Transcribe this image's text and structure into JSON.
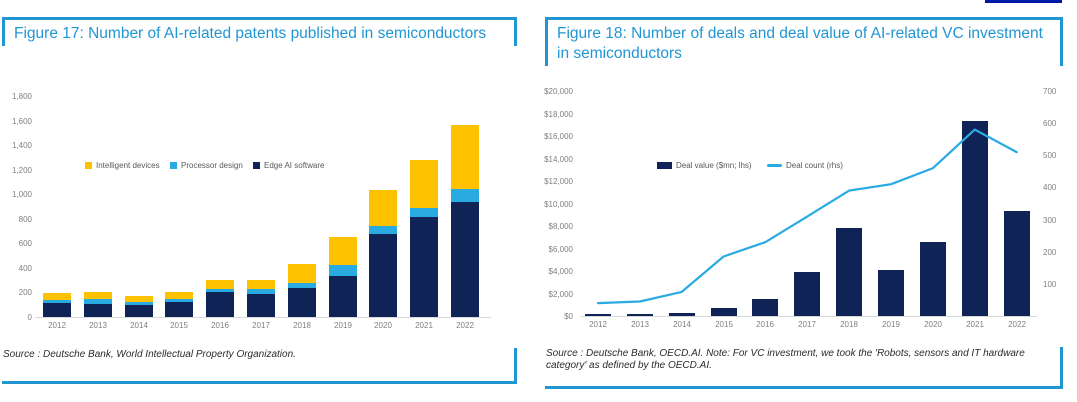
{
  "page": {
    "top_rule_color": "#0019a5",
    "accent_blue": "#2196d3",
    "axis_line_color": "#d9d9d9"
  },
  "chart_data": [
    {
      "id": "figure-17",
      "type": "bar",
      "stacked": true,
      "title": "Figure 17: Number of AI-related patents published in semiconductors",
      "source": "Source : Deutsche Bank, World Intellectual Property Organization.",
      "categories": [
        "2012",
        "2013",
        "2014",
        "2015",
        "2016",
        "2017",
        "2018",
        "2019",
        "2020",
        "2021",
        "2022"
      ],
      "series": [
        {
          "name": "Intelligent devices",
          "color": "#fdc100",
          "values": [
            55,
            60,
            45,
            55,
            75,
            75,
            150,
            235,
            290,
            390,
            520
          ]
        },
        {
          "name": "Processor design",
          "color": "#29abe2",
          "values": [
            30,
            40,
            30,
            25,
            30,
            35,
            45,
            90,
            65,
            75,
            105
          ]
        },
        {
          "name": "Edge AI software",
          "color": "#0f2357",
          "values": [
            110,
            105,
            95,
            125,
            200,
            190,
            235,
            330,
            680,
            815,
            935
          ]
        }
      ],
      "stack_order_bottom_to_top": [
        "Edge AI software",
        "Processor design",
        "Intelligent devices"
      ],
      "y_axis": {
        "min": 0,
        "max": 1800,
        "tick_values": [
          1800,
          1600,
          1400,
          1200,
          1000,
          800,
          600,
          400,
          200,
          0
        ],
        "tick_labels": [
          "1,800",
          "1,600",
          "1,400",
          "1,200",
          "1,000",
          "800",
          "600",
          "400",
          "200",
          "0"
        ]
      },
      "legend_position": "inside-top-left",
      "grid": false
    },
    {
      "id": "figure-18",
      "type": "bar+line",
      "title": "Figure 18: Number of deals and deal value of AI-related VC investment in semiconductors",
      "source": "Source : Deutsche Bank, OECD.AI. Note: For VC investment, we took the 'Robots, sensors and IT hardware category' as defined by the OECD.AI.",
      "categories": [
        "2012",
        "2013",
        "2014",
        "2015",
        "2016",
        "2017",
        "2018",
        "2019",
        "2020",
        "2021",
        "2022"
      ],
      "series": [
        {
          "name": "Deal value ($mn; lhs)",
          "type": "bar",
          "axis": "left",
          "color": "#0f2357",
          "values": [
            150,
            150,
            300,
            750,
            1550,
            3900,
            7800,
            4100,
            6600,
            17300,
            9300
          ]
        },
        {
          "name": "Deal count (rhs)",
          "type": "line",
          "axis": "right",
          "color": "#29abe2",
          "values": [
            40,
            45,
            75,
            185,
            230,
            310,
            390,
            410,
            460,
            580,
            510
          ]
        }
      ],
      "left_axis": {
        "min": 0,
        "max": 20000,
        "tick_values": [
          20000,
          18000,
          16000,
          14000,
          12000,
          10000,
          8000,
          6000,
          4000,
          2000,
          0
        ],
        "tick_labels": [
          "$20,000",
          "$18,000",
          "$16,000",
          "$14,000",
          "$12,000",
          "$10,000",
          "$8,000",
          "$6,000",
          "$4,000",
          "$2,000",
          "$0"
        ]
      },
      "right_axis": {
        "min": 0,
        "max": 700,
        "tick_values": [
          700,
          600,
          500,
          400,
          300,
          200,
          100
        ],
        "tick_labels": [
          "700",
          "600",
          "500",
          "400",
          "300",
          "200",
          "100"
        ]
      },
      "legend_position": "inside-top-center",
      "grid": false
    }
  ]
}
